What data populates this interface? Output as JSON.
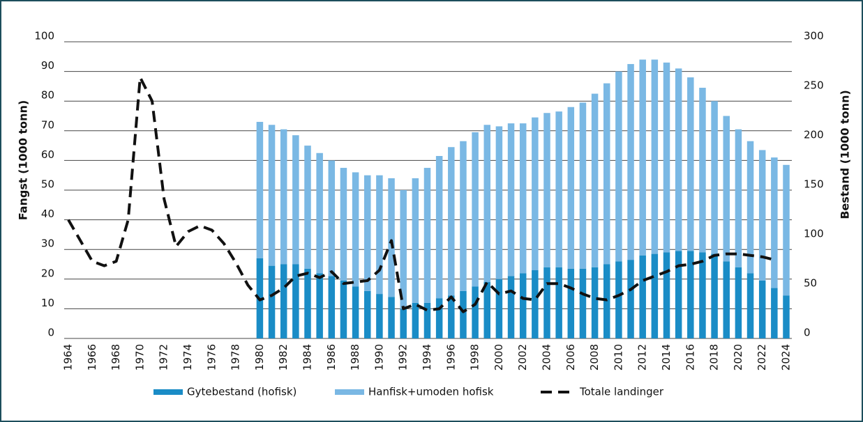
{
  "chart_data": {
    "type": "bar",
    "stacked": true,
    "y_label": "Fangst (1000 tonn)",
    "y2_label": "Bestand (1000 tonn)",
    "categories": [
      "1964",
      null,
      "1966",
      null,
      "1968",
      null,
      "1970",
      null,
      "1972",
      null,
      "1974",
      null,
      "1976",
      null,
      "1978",
      null,
      "1980",
      null,
      "1982",
      null,
      "1984",
      null,
      "1986",
      null,
      "1988",
      null,
      "1990",
      null,
      "1992",
      null,
      "1994",
      null,
      "1996",
      null,
      "1998",
      null,
      "2000",
      null,
      "2002",
      null,
      "2004",
      null,
      "2006",
      null,
      "2008",
      null,
      "2010",
      null,
      "2012",
      null,
      "2014",
      null,
      "2016",
      null,
      "2018",
      null,
      "2020",
      null,
      "2022",
      null,
      "2024"
    ],
    "ylim": [
      0,
      100
    ],
    "yticks": [
      0,
      10,
      20,
      30,
      40,
      50,
      60,
      70,
      80,
      90,
      100
    ],
    "y2lim": [
      0,
      300
    ],
    "y2ticks": [
      0,
      50,
      100,
      150,
      200,
      250,
      300
    ],
    "grid": true,
    "legend": "bottom",
    "series": [
      {
        "name": "Gytebestand (hofisk)",
        "type": "bar",
        "axis": "y2",
        "color": "#1a8cc6",
        "values": [
          null,
          null,
          null,
          null,
          null,
          null,
          null,
          null,
          null,
          null,
          null,
          null,
          null,
          null,
          null,
          null,
          81,
          73.5,
          75,
          75,
          70.5,
          66,
          63,
          58.5,
          52.5,
          48,
          45,
          42,
          30,
          36,
          36,
          40.5,
          43.5,
          48,
          52.5,
          57,
          60,
          63,
          66,
          69,
          72,
          72,
          70.5,
          70.5,
          72,
          75,
          78,
          79.5,
          84,
          85.5,
          87,
          88.5,
          88.5,
          87,
          85.5,
          78,
          72,
          66,
          58.5,
          51,
          43.5
        ]
      },
      {
        "name": "Hanfisk+umoden hofisk",
        "type": "bar",
        "axis": "y2",
        "color": "#7ab8e4",
        "values": [
          null,
          null,
          null,
          null,
          null,
          null,
          null,
          null,
          null,
          null,
          null,
          null,
          null,
          null,
          null,
          null,
          138,
          142.5,
          136.5,
          130.5,
          124.5,
          121.5,
          117,
          114,
          115.5,
          117,
          120,
          120,
          120,
          126,
          136.5,
          144,
          150,
          151.5,
          156,
          159,
          154.5,
          154.5,
          151.5,
          154.5,
          156,
          157.5,
          163.5,
          168,
          175.5,
          183,
          192,
          198,
          198,
          196.5,
          192,
          184.5,
          175.5,
          166.5,
          154.5,
          147,
          139.5,
          133.5,
          132,
          132,
          132
        ]
      },
      {
        "name": "Totale landinger",
        "type": "line",
        "color": "#111111",
        "values": [
          40,
          33,
          26,
          24.5,
          26,
          40,
          88,
          80,
          47,
          31,
          36,
          38,
          36.5,
          32,
          25.5,
          18,
          13,
          14.5,
          17,
          21,
          22,
          20.5,
          22.5,
          18.5,
          19,
          19.5,
          23,
          33,
          10,
          11.5,
          9.5,
          10,
          14,
          9,
          11.5,
          19,
          15,
          16,
          13.5,
          13,
          18.5,
          18.5,
          17,
          15,
          13.5,
          13,
          14.5,
          16.5,
          19.5,
          21,
          22.5,
          24.5,
          25,
          26,
          28,
          28.5,
          28.5,
          28,
          27.5,
          26.5,
          null
        ]
      }
    ]
  }
}
